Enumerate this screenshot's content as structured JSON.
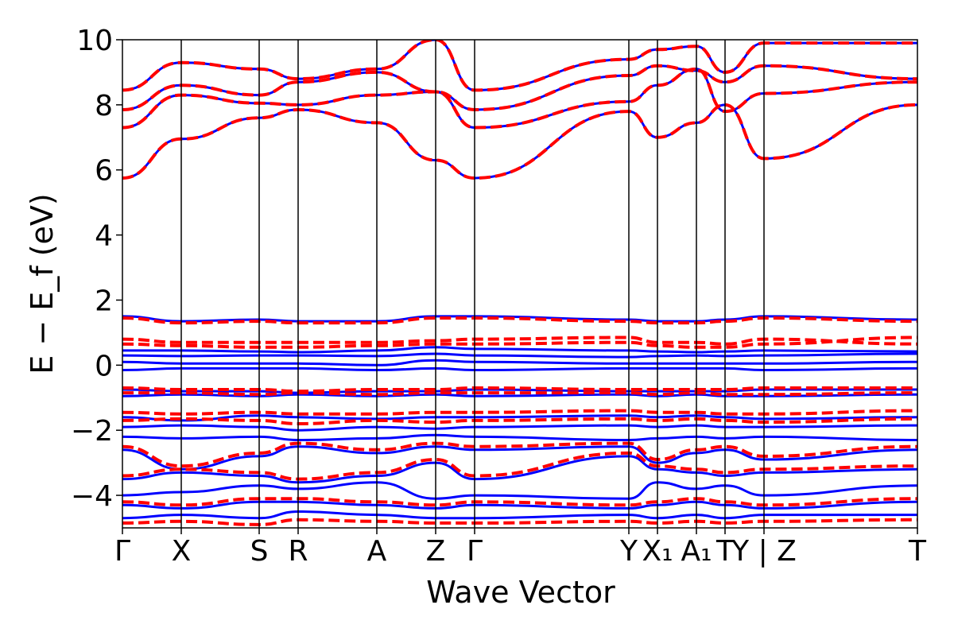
{
  "chart_data": {
    "type": "line",
    "xlabel": "Wave Vector",
    "ylabel": "E − E_f (eV)",
    "ylim": [
      -5,
      10
    ],
    "yticks": [
      -4,
      -2,
      0,
      2,
      4,
      6,
      8,
      10
    ],
    "ytick_labels": [
      "−4",
      "−2",
      "0",
      "2",
      "4",
      "6",
      "8",
      "10"
    ],
    "xlim": [
      0,
      1
    ],
    "kpath_labels": [
      {
        "label": "Γ",
        "x": 0.0
      },
      {
        "label": "X",
        "x": 0.074
      },
      {
        "label": "S",
        "x": 0.172
      },
      {
        "label": "R",
        "x": 0.221
      },
      {
        "label": "A",
        "x": 0.32
      },
      {
        "label": "Z",
        "x": 0.394
      },
      {
        "label": "Γ",
        "x": 0.443
      },
      {
        "label": "Y",
        "x": 0.637
      },
      {
        "label": "X₁",
        "x": 0.673
      },
      {
        "label": "A₁",
        "x": 0.722
      },
      {
        "label": "T",
        "x": 0.758
      },
      {
        "label": "Y | Z",
        "x": 0.807
      },
      {
        "label": "T",
        "x": 1.0
      }
    ],
    "vertical_lines": [
      0.074,
      0.172,
      0.221,
      0.32,
      0.394,
      0.443,
      0.637,
      0.673,
      0.722,
      0.758,
      0.807
    ],
    "series": [
      {
        "color": "#0000ff",
        "style": "solid",
        "bands": [
          {
            "y": [
              5.75,
              6.95,
              7.6,
              7.85,
              7.45,
              6.3,
              5.75,
              7.8,
              7.0,
              7.45,
              8.0,
              6.35,
              8.0
            ]
          },
          {
            "y": [
              7.3,
              8.3,
              8.05,
              8.0,
              8.3,
              8.4,
              7.3,
              8.1,
              8.6,
              9.1,
              7.8,
              8.35,
              8.7
            ]
          },
          {
            "y": [
              7.85,
              8.6,
              8.3,
              8.7,
              9.0,
              8.4,
              7.85,
              8.9,
              9.2,
              9.05,
              8.7,
              9.2,
              8.8
            ]
          },
          {
            "y": [
              8.45,
              9.3,
              9.1,
              8.8,
              9.1,
              10.0,
              8.45,
              9.4,
              9.7,
              9.8,
              9.0,
              9.9,
              9.9
            ]
          },
          {
            "y": [
              1.5,
              1.35,
              1.4,
              1.35,
              1.35,
              1.5,
              1.5,
              1.4,
              1.35,
              1.35,
              1.4,
              1.5,
              1.4
            ]
          },
          {
            "y": [
              0.45,
              0.45,
              0.42,
              0.4,
              0.45,
              0.55,
              0.5,
              0.45,
              0.42,
              0.4,
              0.42,
              0.45,
              0.42
            ]
          },
          {
            "y": [
              0.3,
              0.28,
              0.3,
              0.3,
              0.28,
              0.35,
              0.3,
              0.25,
              0.28,
              0.3,
              0.28,
              0.3,
              0.35
            ]
          },
          {
            "y": [
              0.1,
              0.05,
              0.05,
              0.05,
              0.0,
              0.15,
              0.1,
              0.05,
              0.05,
              0.05,
              0.05,
              0.05,
              0.1
            ]
          },
          {
            "y": [
              -0.15,
              -0.1,
              -0.1,
              -0.1,
              -0.15,
              -0.1,
              -0.15,
              -0.1,
              -0.1,
              -0.1,
              -0.1,
              -0.15,
              -0.1
            ]
          },
          {
            "y": [
              -0.75,
              -0.8,
              -0.8,
              -0.85,
              -0.8,
              -0.8,
              -0.75,
              -0.8,
              -0.8,
              -0.8,
              -0.8,
              -0.75,
              -0.75
            ]
          },
          {
            "y": [
              -0.95,
              -0.9,
              -0.95,
              -0.9,
              -0.95,
              -0.9,
              -0.95,
              -0.9,
              -0.95,
              -0.9,
              -0.95,
              -0.95,
              -0.9
            ]
          },
          {
            "y": [
              -1.6,
              -1.7,
              -1.55,
              -1.6,
              -1.65,
              -1.6,
              -1.6,
              -1.55,
              -1.6,
              -1.55,
              -1.6,
              -1.65,
              -1.6
            ]
          },
          {
            "y": [
              -1.9,
              -1.85,
              -1.9,
              -2.0,
              -1.9,
              -1.95,
              -1.9,
              -1.85,
              -1.9,
              -1.85,
              -1.9,
              -1.9,
              -1.85
            ]
          },
          {
            "y": [
              -2.2,
              -2.25,
              -2.2,
              -2.3,
              -2.25,
              -2.15,
              -2.2,
              -2.3,
              -2.25,
              -2.2,
              -2.25,
              -2.2,
              -2.3
            ]
          },
          {
            "y": [
              -2.6,
              -3.2,
              -2.8,
              -2.5,
              -2.7,
              -2.5,
              -2.6,
              -2.5,
              -3.0,
              -2.7,
              -2.6,
              -2.9,
              -2.6
            ]
          },
          {
            "y": [
              -3.5,
              -3.3,
              -3.4,
              -3.6,
              -3.4,
              -3.0,
              -3.5,
              -2.8,
              -3.2,
              -3.3,
              -3.4,
              -3.3,
              -3.2
            ]
          },
          {
            "y": [
              -4.0,
              -3.9,
              -3.7,
              -3.8,
              -3.6,
              -4.1,
              -4.0,
              -4.1,
              -3.6,
              -3.8,
              -3.7,
              -4.0,
              -3.7
            ]
          },
          {
            "y": [
              -4.3,
              -4.4,
              -4.2,
              -4.2,
              -4.3,
              -4.4,
              -4.3,
              -4.4,
              -4.3,
              -4.2,
              -4.3,
              -4.4,
              -4.2
            ]
          },
          {
            "y": [
              -4.7,
              -4.6,
              -4.7,
              -4.5,
              -4.6,
              -4.7,
              -4.7,
              -4.6,
              -4.7,
              -4.6,
              -4.7,
              -4.6,
              -4.6
            ]
          }
        ]
      },
      {
        "color": "#ff0000",
        "style": "dashed",
        "bands": [
          {
            "y": [
              5.75,
              6.95,
              7.6,
              7.85,
              7.45,
              6.3,
              5.75,
              7.8,
              7.0,
              7.45,
              8.0,
              6.35,
              8.0
            ]
          },
          {
            "y": [
              7.3,
              8.3,
              8.05,
              8.0,
              8.3,
              8.4,
              7.3,
              8.1,
              8.6,
              9.1,
              7.8,
              8.35,
              8.7
            ]
          },
          {
            "y": [
              7.85,
              8.6,
              8.3,
              8.7,
              9.0,
              8.4,
              7.85,
              8.9,
              9.2,
              9.05,
              8.7,
              9.2,
              8.8
            ]
          },
          {
            "y": [
              8.45,
              9.3,
              9.1,
              8.8,
              9.1,
              10.0,
              8.45,
              9.4,
              9.7,
              9.8,
              9.0,
              9.9,
              9.9
            ]
          },
          {
            "y": [
              1.45,
              1.3,
              1.35,
              1.3,
              1.3,
              1.45,
              1.45,
              1.35,
              1.3,
              1.3,
              1.35,
              1.45,
              1.35
            ]
          },
          {
            "y": [
              0.8,
              0.7,
              0.7,
              0.7,
              0.7,
              0.75,
              0.8,
              0.85,
              0.7,
              0.7,
              0.65,
              0.8,
              0.65
            ]
          },
          {
            "y": [
              0.65,
              0.6,
              0.55,
              0.55,
              0.6,
              0.65,
              0.65,
              0.7,
              0.6,
              0.55,
              0.55,
              0.65,
              0.85
            ]
          },
          {
            "y": [
              -0.7,
              -0.75,
              -0.75,
              -0.8,
              -0.75,
              -0.75,
              -0.7,
              -0.75,
              -0.75,
              -0.75,
              -0.75,
              -0.7,
              -0.7
            ]
          },
          {
            "y": [
              -0.85,
              -0.85,
              -0.9,
              -0.85,
              -0.9,
              -0.85,
              -0.85,
              -0.85,
              -0.9,
              -0.85,
              -0.9,
              -0.9,
              -0.85
            ]
          },
          {
            "y": [
              -1.45,
              -1.5,
              -1.45,
              -1.5,
              -1.5,
              -1.45,
              -1.45,
              -1.4,
              -1.45,
              -1.45,
              -1.5,
              -1.5,
              -1.4
            ]
          },
          {
            "y": [
              -1.7,
              -1.65,
              -1.7,
              -1.8,
              -1.7,
              -1.75,
              -1.7,
              -1.65,
              -1.7,
              -1.65,
              -1.7,
              -1.75,
              -1.65
            ]
          },
          {
            "y": [
              -2.5,
              -3.1,
              -2.7,
              -2.4,
              -2.6,
              -2.4,
              -2.5,
              -2.4,
              -2.9,
              -2.6,
              -2.5,
              -2.8,
              -2.5
            ]
          },
          {
            "y": [
              -3.4,
              -3.2,
              -3.3,
              -3.5,
              -3.3,
              -2.9,
              -3.4,
              -2.7,
              -3.1,
              -3.2,
              -3.3,
              -3.2,
              -3.1
            ]
          },
          {
            "y": [
              -4.2,
              -4.3,
              -4.1,
              -4.1,
              -4.2,
              -4.3,
              -4.2,
              -4.3,
              -4.2,
              -4.1,
              -4.2,
              -4.3,
              -4.1
            ]
          },
          {
            "y": [
              -4.85,
              -4.8,
              -4.9,
              -4.75,
              -4.8,
              -4.85,
              -4.85,
              -4.8,
              -4.85,
              -4.8,
              -4.85,
              -4.8,
              -4.75
            ]
          }
        ]
      }
    ]
  }
}
